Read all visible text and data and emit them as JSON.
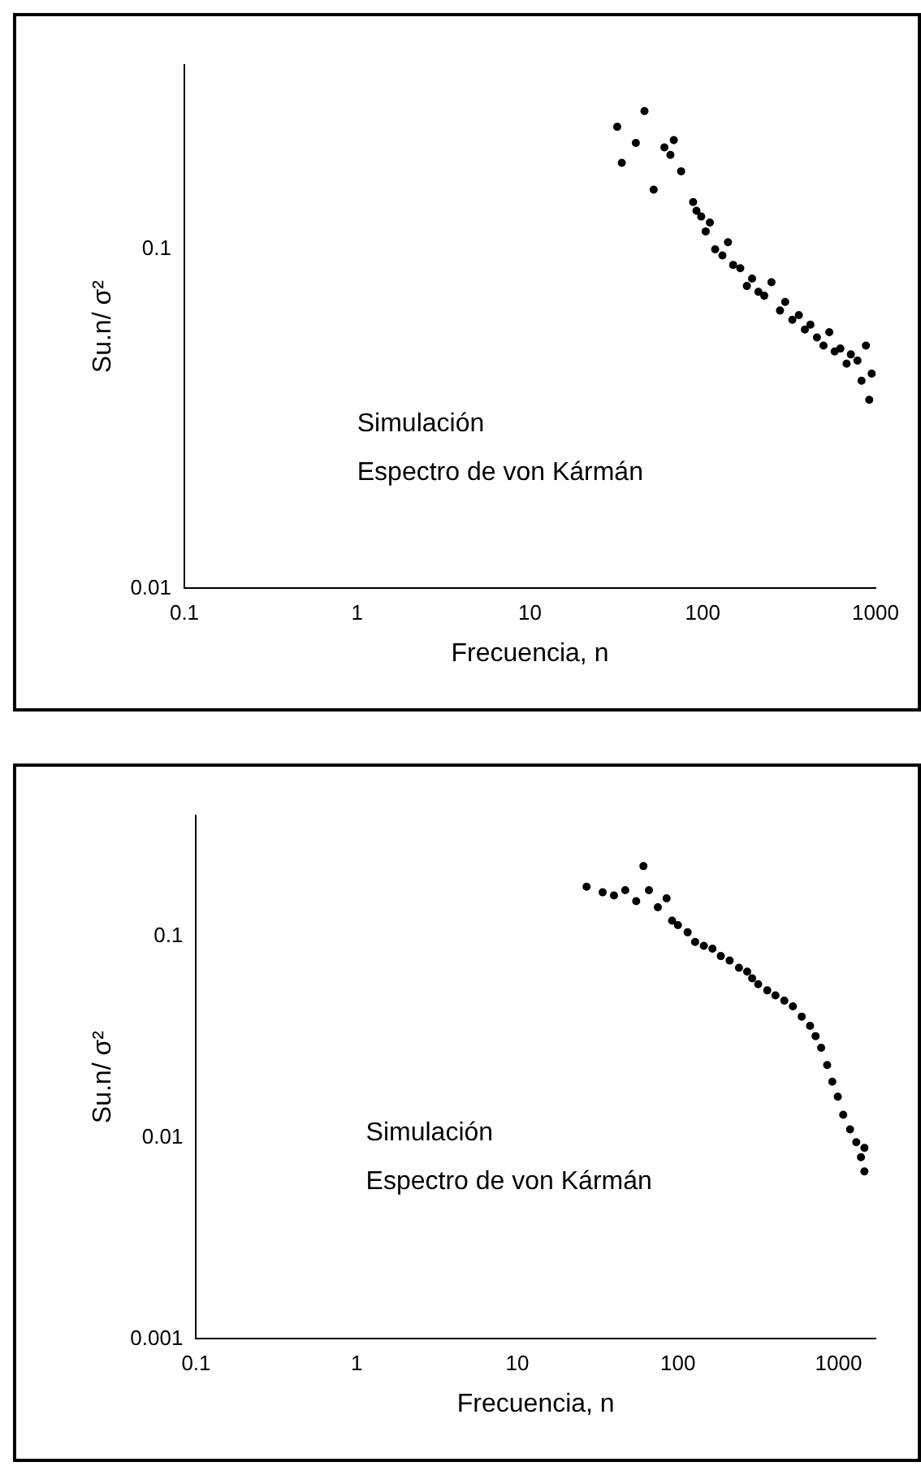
{
  "chart_data": [
    {
      "type": "scatter",
      "xlabel": "Frecuencia, n",
      "ylabel": "Su.n/ σ²",
      "log": "xy",
      "grid": false,
      "legend": false,
      "marker": "circle",
      "xlim": [
        0.1,
        1000
      ],
      "ylim": [
        0.01,
        0.35
      ],
      "xticks": [
        0.1,
        1,
        10,
        100,
        1000
      ],
      "yticks": [
        0.01,
        0.1
      ],
      "annotations": [
        "Simulación",
        "Espectro de von Kármán"
      ],
      "series": [
        {
          "color": "#000000",
          "x": [
            32,
            34,
            41,
            46,
            52,
            60,
            65,
            68,
            75,
            88,
            92,
            98,
            104,
            110,
            118,
            130,
            140,
            150,
            165,
            180,
            193,
            210,
            227,
            250,
            280,
            300,
            330,
            360,
            390,
            420,
            458,
            500,
            540,
            580,
            626,
            680,
            720,
            786,
            830,
            880,
            920,
            950
          ],
          "values": [
            0.23,
            0.18,
            0.206,
            0.256,
            0.15,
            0.2,
            0.19,
            0.21,
            0.17,
            0.138,
            0.13,
            0.125,
            0.113,
            0.12,
            0.1,
            0.096,
            0.105,
            0.09,
            0.088,
            0.078,
            0.082,
            0.075,
            0.073,
            0.08,
            0.066,
            0.07,
            0.062,
            0.064,
            0.058,
            0.06,
            0.055,
            0.052,
            0.057,
            0.05,
            0.051,
            0.046,
            0.049,
            0.047,
            0.041,
            0.052,
            0.036,
            0.043
          ]
        }
      ]
    },
    {
      "type": "scatter",
      "xlabel": "Frecuencia, n",
      "ylabel": "Su.n/ σ²",
      "log": "xy",
      "grid": false,
      "legend": false,
      "marker": "circle",
      "xlim": [
        0.1,
        1700
      ],
      "ylim": [
        0.001,
        0.4
      ],
      "xticks": [
        0.1,
        1,
        10,
        100,
        1000
      ],
      "yticks": [
        0.001,
        0.01,
        0.1
      ],
      "annotations": [
        "Simulación",
        "Espectro de von Kármán"
      ],
      "series": [
        {
          "color": "#000000",
          "x": [
            27,
            34,
            40,
            47,
            55,
            61,
            66,
            75,
            85,
            92,
            100,
            115,
            128,
            145,
            164,
            185,
            210,
            240,
            270,
            290,
            316,
            360,
            405,
            460,
            520,
            590,
            665,
            720,
            780,
            850,
            915,
            990,
            1070,
            1180,
            1290,
            1380,
            1450,
            1450
          ],
          "values": [
            0.177,
            0.166,
            0.16,
            0.17,
            0.15,
            0.224,
            0.17,
            0.14,
            0.155,
            0.12,
            0.114,
            0.105,
            0.094,
            0.09,
            0.087,
            0.08,
            0.076,
            0.07,
            0.067,
            0.062,
            0.058,
            0.054,
            0.051,
            0.048,
            0.045,
            0.04,
            0.036,
            0.032,
            0.028,
            0.023,
            0.019,
            0.016,
            0.013,
            0.011,
            0.0095,
            0.008,
            0.0068,
            0.0089
          ]
        }
      ]
    }
  ]
}
